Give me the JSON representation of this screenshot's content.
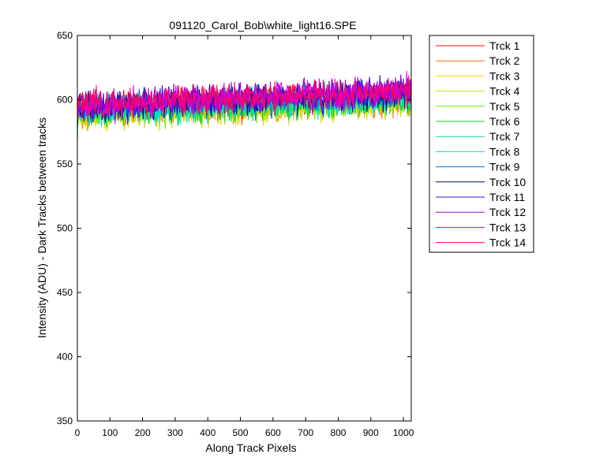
{
  "chart_data": {
    "type": "line",
    "title": "091120_Carol_Bob\\white_light16.SPE",
    "xlabel": "Along Track Pixels",
    "ylabel": "Intensity (ADU) - Dark Tracks between tracks",
    "xlim": [
      0,
      1024
    ],
    "ylim": [
      350,
      650
    ],
    "xticks": [
      0,
      100,
      200,
      300,
      400,
      500,
      600,
      700,
      800,
      900,
      1000
    ],
    "yticks": [
      350,
      400,
      450,
      500,
      550,
      600,
      650
    ],
    "x_points": 1024,
    "noise_amplitude_approx": 8,
    "legend_position": "outside-right-top",
    "series": [
      {
        "name": "Trck 1",
        "color": "#ff0000",
        "start": 597,
        "end": 602
      },
      {
        "name": "Trck 2",
        "color": "#ff6f00",
        "start": 590,
        "end": 600
      },
      {
        "name": "Trck 3",
        "color": "#ffcc00",
        "start": 589,
        "end": 598
      },
      {
        "name": "Trck 4",
        "color": "#ccdd00",
        "start": 588,
        "end": 598
      },
      {
        "name": "Trck 5",
        "color": "#66ee00",
        "start": 590,
        "end": 600
      },
      {
        "name": "Trck 6",
        "color": "#00dd33",
        "start": 590,
        "end": 600
      },
      {
        "name": "Trck 7",
        "color": "#00ddaa",
        "start": 592,
        "end": 601
      },
      {
        "name": "Trck 8",
        "color": "#00dddd",
        "start": 592,
        "end": 602
      },
      {
        "name": "Trck 9",
        "color": "#0077dd",
        "start": 593,
        "end": 604
      },
      {
        "name": "Trck 10",
        "color": "#001166",
        "start": 594,
        "end": 605
      },
      {
        "name": "Trck 11",
        "color": "#3311ee",
        "start": 594,
        "end": 607
      },
      {
        "name": "Trck 12",
        "color": "#9900cc",
        "start": 595,
        "end": 607
      },
      {
        "name": "Trck 13",
        "color": "#dd00dd",
        "start": 595,
        "end": 607
      },
      {
        "name": "Trck 14",
        "color": "#ff0066",
        "start": 596,
        "end": 607
      }
    ]
  }
}
